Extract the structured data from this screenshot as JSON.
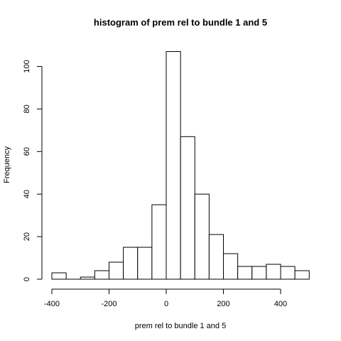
{
  "chart_data": {
    "type": "bar",
    "subtype": "histogram",
    "title": "histogram of prem rel to bundle 1 and 5",
    "xlabel": "prem rel to bundle 1 and 5",
    "ylabel": "Frequency",
    "xlim": [
      -400,
      500
    ],
    "ylim": [
      0,
      107
    ],
    "grid": false,
    "x_ticks": [
      -400,
      -200,
      0,
      200,
      400
    ],
    "y_ticks": [
      0,
      20,
      40,
      60,
      80,
      100
    ],
    "bins": [
      {
        "from": -400,
        "to": -350,
        "count": 3
      },
      {
        "from": -350,
        "to": -300,
        "count": 0
      },
      {
        "from": -300,
        "to": -250,
        "count": 1
      },
      {
        "from": -250,
        "to": -200,
        "count": 4
      },
      {
        "from": -200,
        "to": -150,
        "count": 8
      },
      {
        "from": -150,
        "to": -100,
        "count": 15
      },
      {
        "from": -100,
        "to": -50,
        "count": 15
      },
      {
        "from": -50,
        "to": 0,
        "count": 35
      },
      {
        "from": 0,
        "to": 50,
        "count": 107
      },
      {
        "from": 50,
        "to": 100,
        "count": 67
      },
      {
        "from": 100,
        "to": 150,
        "count": 40
      },
      {
        "from": 150,
        "to": 200,
        "count": 21
      },
      {
        "from": 200,
        "to": 250,
        "count": 12
      },
      {
        "from": 250,
        "to": 300,
        "count": 6
      },
      {
        "from": 300,
        "to": 350,
        "count": 6
      },
      {
        "from": 350,
        "to": 400,
        "count": 7
      },
      {
        "from": 400,
        "to": 450,
        "count": 6
      },
      {
        "from": 450,
        "to": 500,
        "count": 4
      }
    ],
    "colors": {
      "bar_fill": "#ffffff",
      "bar_stroke": "#000000",
      "axis": "#000000"
    }
  }
}
